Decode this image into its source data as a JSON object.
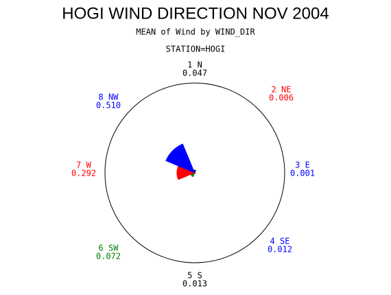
{
  "chart_data": {
    "type": "wind-rose",
    "title": "HOGI WIND DIRECTION NOV 2004",
    "subtitle": "MEAN of Wind by WIND_DIR",
    "station": "STATION=HOGI",
    "categories": [
      "1 N",
      "2 NE",
      "3 E",
      "4 SE",
      "5 S",
      "6 SW",
      "7 W",
      "8 NW"
    ],
    "values": [
      0.047,
      0.006,
      0.001,
      0.012,
      0.013,
      0.072,
      0.292,
      0.51
    ],
    "value_labels": [
      "0.047",
      "0.006",
      "0.001",
      "0.012",
      "0.013",
      "0.072",
      "0.292",
      "0.510"
    ],
    "colors": [
      "#000000",
      "#ff0000",
      "#0000ff",
      "#0000ff",
      "#000000",
      "#008000",
      "#ff0000",
      "#0000ff"
    ]
  }
}
